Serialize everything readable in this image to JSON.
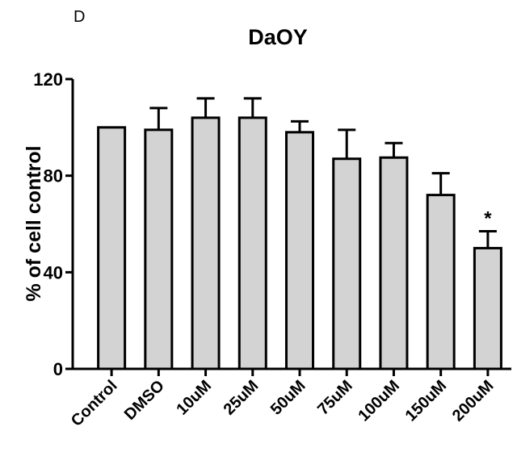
{
  "panel_label": "D",
  "chart_data": {
    "type": "bar",
    "title": "DaOY",
    "xlabel": "",
    "ylabel": "% of cell control",
    "ylim": [
      0,
      120
    ],
    "yticks": [
      0,
      40,
      80,
      120
    ],
    "categories": [
      "Control",
      "DMSO",
      "10uM",
      "25uM",
      "50uM",
      "75uM",
      "100uM",
      "150uM",
      "200uM"
    ],
    "values": [
      100,
      99,
      104,
      104,
      98,
      87,
      87.5,
      72,
      50
    ],
    "error_upper": [
      0,
      9,
      8,
      8,
      4.5,
      12,
      6,
      9,
      7
    ],
    "annotations": [
      {
        "category": "200uM",
        "text": "*"
      }
    ],
    "bar_color": "#d3d3d3",
    "edge_color": "#000000",
    "grid": false,
    "legend": "none"
  }
}
